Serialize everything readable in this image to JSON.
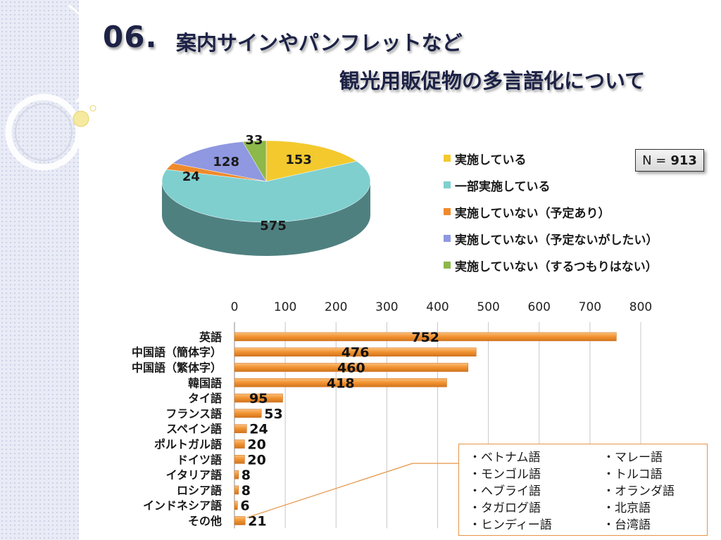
{
  "title": {
    "number": "06.",
    "line1": "案内サインやパンフレットなど",
    "line2": "観光用販促物の多言語化について"
  },
  "sample": {
    "prefix": "N =",
    "value": "913"
  },
  "colors": {
    "pie": [
      "#f3c92e",
      "#7fcfcf",
      "#ef8a2c",
      "#8f98e0",
      "#8db84a"
    ],
    "bar": "#f19230",
    "title": "#1d2246",
    "callout_border": "#e59445"
  },
  "chart_data": [
    {
      "type": "pie",
      "title": "",
      "legend_position": "right",
      "slices": [
        {
          "label": "実施している",
          "value": 153
        },
        {
          "label": "一部実施している",
          "value": 575
        },
        {
          "label": "実施していない（予定あり）",
          "value": 24
        },
        {
          "label": "実施していない（予定ないがしたい）",
          "value": 128
        },
        {
          "label": "実施していない（するつもりはない）",
          "value": 33
        }
      ]
    },
    {
      "type": "bar",
      "orientation": "horizontal",
      "title": "",
      "xlabel": "",
      "ylabel": "",
      "xlim": [
        0,
        800
      ],
      "ticks": [
        0,
        100,
        200,
        300,
        400,
        500,
        600,
        700,
        800
      ],
      "grid": true,
      "categories": [
        "英語",
        "中国語（簡体字）",
        "中国語（繁体字）",
        "韓国語",
        "タイ語",
        "フランス語",
        "スペイン語",
        "ポルトガル語",
        "ドイツ語",
        "イタリア語",
        "ロシア語",
        "インドネシア語",
        "その他"
      ],
      "values": [
        752,
        476,
        460,
        418,
        95,
        53,
        24,
        20,
        20,
        8,
        8,
        6,
        21
      ]
    }
  ],
  "other_languages": [
    "・ベトナム語",
    "・マレー語",
    "・モンゴル語",
    "・トルコ語",
    "・ヘブライ語",
    "・オランダ語",
    "・タガログ語",
    "・北京語",
    "・ヒンディー語",
    "・台湾語"
  ]
}
